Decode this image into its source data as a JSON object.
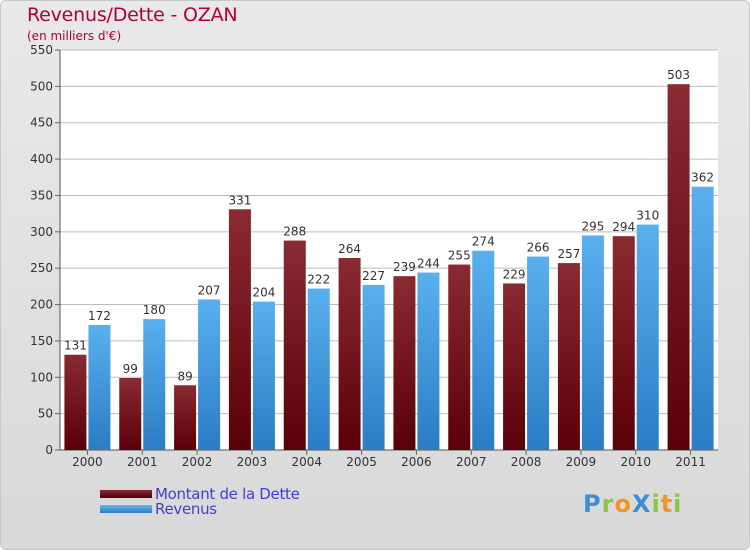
{
  "header": {
    "title": "Revenus/Dette - OZAN",
    "subtitle": "(en milliers d'€)"
  },
  "colors": {
    "dette": "#6e0a14",
    "revenus": "#3a95dc",
    "title": "#b0003a",
    "legend_text": "#4040d0"
  },
  "chart_data": {
    "type": "bar",
    "title": "Revenus/Dette - OZAN",
    "subtitle": "(en milliers d'€)",
    "categories": [
      "2000",
      "2001",
      "2002",
      "2003",
      "2004",
      "2005",
      "2006",
      "2007",
      "2008",
      "2009",
      "2010",
      "2011"
    ],
    "series": [
      {
        "name": "Montant de la Dette",
        "values": [
          131,
          99,
          89,
          331,
          288,
          264,
          239,
          255,
          229,
          257,
          294,
          503
        ]
      },
      {
        "name": "Revenus",
        "values": [
          172,
          180,
          207,
          204,
          222,
          227,
          244,
          274,
          266,
          295,
          310,
          362
        ]
      }
    ],
    "ylim": [
      0,
      550
    ],
    "yticks": [
      0,
      50,
      100,
      150,
      200,
      250,
      300,
      350,
      400,
      450,
      500,
      550
    ],
    "grid": true,
    "legend_position": "bottom-left"
  },
  "legend": {
    "items": [
      {
        "label": "Montant de la Dette",
        "color": "#6e0a14"
      },
      {
        "label": "Revenus",
        "color": "#3a95dc"
      }
    ]
  },
  "logo": {
    "text": "ProXiti",
    "letters": [
      {
        "char": "P",
        "color": "#3a8fd6"
      },
      {
        "char": "r",
        "color": "#8cc63f"
      },
      {
        "char": "o",
        "color": "#f7941d"
      },
      {
        "char": "X",
        "color": "#3a8fd6"
      },
      {
        "char": "i",
        "color": "#8cc63f"
      },
      {
        "char": "t",
        "color": "#f7941d"
      },
      {
        "char": "i",
        "color": "#8cc63f"
      }
    ]
  }
}
